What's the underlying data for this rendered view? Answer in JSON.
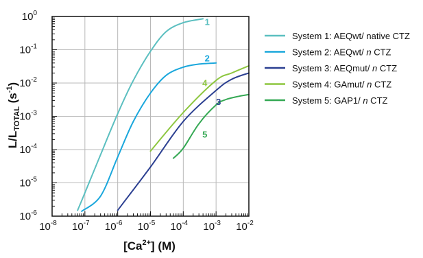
{
  "chart_data": {
    "type": "line",
    "title": "",
    "xscale": "log",
    "yscale": "log",
    "xlim": [
      1e-08,
      0.01
    ],
    "ylim": [
      1e-06,
      1
    ],
    "grid": true,
    "xlabel_parts": [
      "[Ca",
      "2+",
      "] (M)"
    ],
    "ylabel_parts": [
      "L/L",
      "TOTAL",
      " (s",
      "-1",
      ")"
    ],
    "x_ticks": [
      {
        "value": 1e-08,
        "base": "10",
        "exp": "-8"
      },
      {
        "value": 1e-07,
        "base": "10",
        "exp": "-7"
      },
      {
        "value": 1e-06,
        "base": "10",
        "exp": "-6"
      },
      {
        "value": 1e-05,
        "base": "10",
        "exp": "-5"
      },
      {
        "value": 0.0001,
        "base": "10",
        "exp": "-4"
      },
      {
        "value": 0.001,
        "base": "10",
        "exp": "-3"
      },
      {
        "value": 0.01,
        "base": "10",
        "exp": "-2"
      }
    ],
    "y_ticks": [
      {
        "value": 1e-06,
        "base": "10",
        "exp": "-6"
      },
      {
        "value": 1e-05,
        "base": "10",
        "exp": "-5"
      },
      {
        "value": 0.0001,
        "base": "10",
        "exp": "-4"
      },
      {
        "value": 0.001,
        "base": "10",
        "exp": "-3"
      },
      {
        "value": 0.01,
        "base": "10",
        "exp": "-2"
      },
      {
        "value": 0.1,
        "base": "10",
        "exp": "-1"
      },
      {
        "value": 1,
        "base": "10",
        "exp": "0"
      }
    ],
    "legend_position": "right",
    "series": [
      {
        "name": "System 1: AEQwt/ native CTZ",
        "legend_parts": [
          {
            "text": "System 1: AEQwt/ native CTZ",
            "italic": false
          }
        ],
        "curve_label": "1",
        "label_at": [
          0.00045,
          0.55
        ],
        "color": "#5bbfc0",
        "x": [
          6e-08,
          1e-07,
          3e-07,
          1e-06,
          3e-06,
          1e-05,
          3e-05,
          0.0001,
          0.0004
        ],
        "y": [
          1.5e-06,
          5e-06,
          7e-05,
          0.0012,
          0.012,
          0.09,
          0.35,
          0.65,
          0.85
        ]
      },
      {
        "name": "System 2: AEQwt/ n CTZ",
        "legend_parts": [
          {
            "text": "System 2: AEQwt/ ",
            "italic": false
          },
          {
            "text": "n",
            "italic": true
          },
          {
            "text": " CTZ",
            "italic": false
          }
        ],
        "curve_label": "2",
        "label_at": [
          0.00045,
          0.045
        ],
        "color": "#1aa7dc",
        "x": [
          8e-08,
          3e-07,
          1e-06,
          3e-06,
          1e-05,
          3e-05,
          0.0001,
          0.0003,
          0.001
        ],
        "y": [
          1.4e-06,
          4e-06,
          6e-05,
          0.0007,
          0.005,
          0.017,
          0.03,
          0.037,
          0.04
        ]
      },
      {
        "name": "System 3: AEQmut/ n CTZ",
        "legend_parts": [
          {
            "text": "System 3: AEQmut/ ",
            "italic": false
          },
          {
            "text": "n",
            "italic": true
          },
          {
            "text": " CTZ",
            "italic": false
          }
        ],
        "curve_label": "3",
        "label_at": [
          0.001,
          0.0022
        ],
        "color": "#2b3f91",
        "x": [
          1e-06,
          1e-05,
          0.0001,
          0.001,
          0.003,
          0.01
        ],
        "y": [
          1.5e-06,
          3e-05,
          0.0007,
          0.006,
          0.013,
          0.02
        ]
      },
      {
        "name": "System 4: GAmut/ n CTZ",
        "legend_parts": [
          {
            "text": "System 4: GAmut/ ",
            "italic": false
          },
          {
            "text": "n",
            "italic": true
          },
          {
            "text": " CTZ",
            "italic": false
          }
        ],
        "curve_label": "4",
        "label_at": [
          0.00038,
          0.008
        ],
        "color": "#8dc63f",
        "x": [
          1e-05,
          0.0001,
          0.001,
          0.003,
          0.01
        ],
        "y": [
          9e-05,
          0.0013,
          0.012,
          0.02,
          0.033
        ]
      },
      {
        "name": "System 5: GAP1/ n CTZ",
        "legend_parts": [
          {
            "text": "System 5: GAP1/ ",
            "italic": false
          },
          {
            "text": "n",
            "italic": true
          },
          {
            "text": " CTZ",
            "italic": false
          }
        ],
        "curve_label": "5",
        "label_at": [
          0.00038,
          0.00023
        ],
        "color": "#34a853",
        "x": [
          5e-05,
          0.0001,
          0.0003,
          0.001,
          0.002,
          0.005,
          0.01
        ],
        "y": [
          5.5e-05,
          0.00011,
          0.0006,
          0.0022,
          0.0032,
          0.004,
          0.0045
        ]
      }
    ]
  }
}
